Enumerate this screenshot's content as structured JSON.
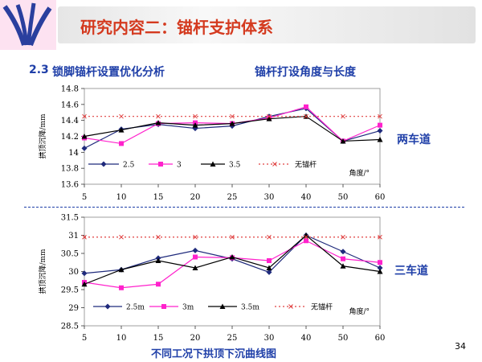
{
  "header": {
    "title": "研究内容二：锚杆支护体系",
    "section_number": "2.3",
    "section_title": "锁脚锚杆设置优化分析",
    "right_title": "锚杆打设角度与长度"
  },
  "side_labels": {
    "chart1": "两车道",
    "chart2": "三车道"
  },
  "caption": "不同工况下拱顶下沉曲线图",
  "page_number": "34",
  "colors": {
    "navy": "#1f2a7c",
    "magenta": "#ff22cc",
    "black": "#000000",
    "nobolt": "#e04040",
    "accent": "#1f3fa8",
    "title_red": "#d43a1f"
  },
  "chart_data": [
    {
      "type": "line",
      "ylabel": "拱顶沉降/mm",
      "xlabel": "角度/°",
      "x": [
        5,
        10,
        15,
        20,
        25,
        30,
        40,
        50,
        60
      ],
      "xticks": [
        "5",
        "10",
        "15",
        "20",
        "25",
        "30",
        "40",
        "50",
        "60"
      ],
      "ylim": [
        13.6,
        14.8
      ],
      "yticks": [
        "13.6",
        "13.8",
        "14",
        "14.2",
        "14.4",
        "14.6",
        "14.8"
      ],
      "legend_position": "bottom",
      "series": [
        {
          "name": "2.5",
          "values": [
            14.05,
            14.29,
            14.35,
            14.3,
            14.33,
            14.45,
            14.55,
            14.14,
            14.27
          ],
          "color": "#1f2a7c",
          "marker": "diamond",
          "dash": false
        },
        {
          "name": "3",
          "values": [
            14.18,
            14.11,
            14.36,
            14.37,
            14.36,
            14.43,
            14.57,
            14.14,
            14.34
          ],
          "color": "#ff22cc",
          "marker": "square",
          "dash": false
        },
        {
          "name": "3.5",
          "values": [
            14.2,
            14.28,
            14.37,
            14.34,
            14.36,
            14.42,
            14.45,
            14.14,
            14.16
          ],
          "color": "#000000",
          "marker": "triangle",
          "dash": false
        },
        {
          "name": "无锚杆",
          "values": [
            14.45,
            14.45,
            14.45,
            14.45,
            14.45,
            14.45,
            14.45,
            14.45,
            14.45
          ],
          "color": "#e04040",
          "marker": "x",
          "dash": true
        }
      ]
    },
    {
      "type": "line",
      "ylabel": "拱顶沉降/mm",
      "xlabel": "角度/°",
      "x": [
        5,
        10,
        15,
        20,
        25,
        30,
        40,
        50,
        60
      ],
      "xticks": [
        "5",
        "10",
        "15",
        "20",
        "25",
        "30",
        "40",
        "50",
        "60"
      ],
      "ylim": [
        28.5,
        31.5
      ],
      "yticks": [
        "28.5",
        "29",
        "29.5",
        "30",
        "30.5",
        "31",
        "31.5"
      ],
      "legend_position": "bottom",
      "series": [
        {
          "name": "2.5m",
          "values": [
            29.95,
            30.05,
            30.37,
            30.58,
            30.35,
            29.98,
            31.0,
            30.55,
            30.1
          ],
          "color": "#1f2a7c",
          "marker": "diamond",
          "dash": false
        },
        {
          "name": "3m",
          "values": [
            29.7,
            29.55,
            29.65,
            30.4,
            30.38,
            30.3,
            30.85,
            30.35,
            30.25
          ],
          "color": "#ff22cc",
          "marker": "square",
          "dash": false
        },
        {
          "name": "3.5m",
          "values": [
            29.65,
            30.05,
            30.3,
            30.1,
            30.4,
            30.1,
            31.0,
            30.15,
            30.0
          ],
          "color": "#000000",
          "marker": "triangle",
          "dash": false
        },
        {
          "name": "无锚杆",
          "values": [
            30.95,
            30.95,
            30.95,
            30.95,
            30.95,
            30.95,
            30.95,
            30.95,
            30.95
          ],
          "color": "#e04040",
          "marker": "x",
          "dash": true
        }
      ]
    }
  ]
}
